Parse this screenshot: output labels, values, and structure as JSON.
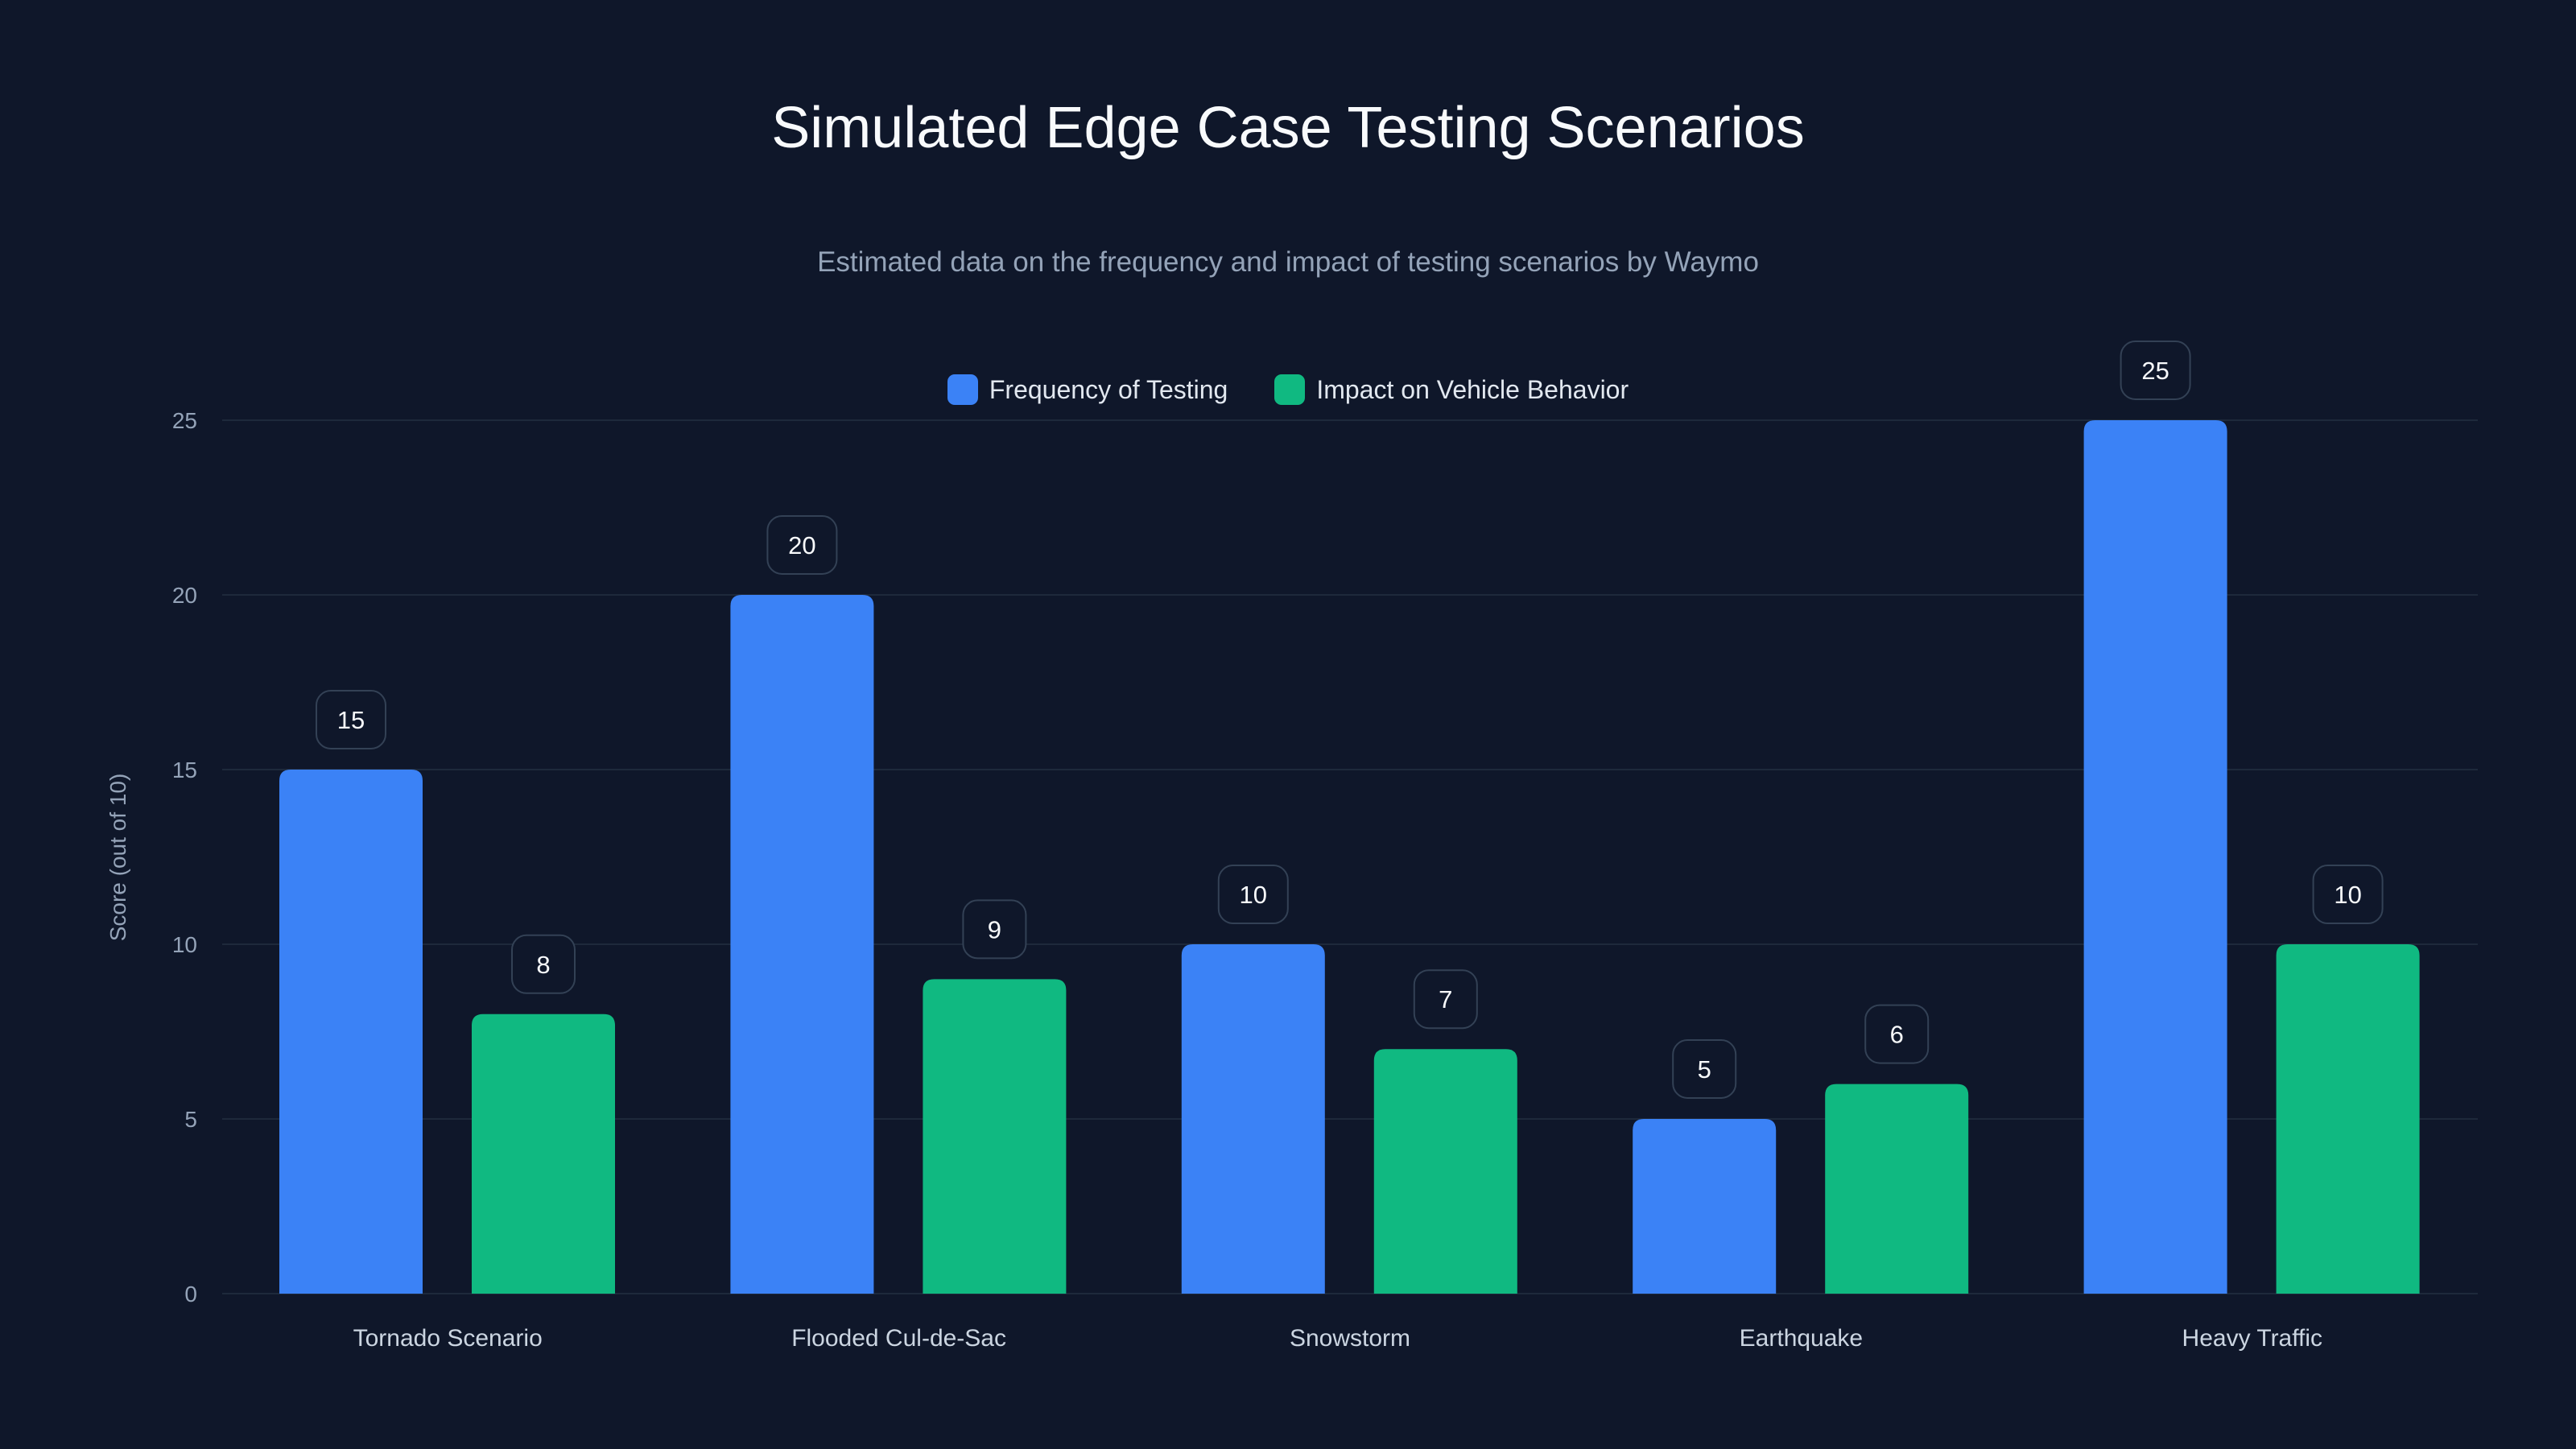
{
  "chart_data": {
    "type": "bar",
    "title": "Simulated Edge Case Testing Scenarios",
    "subtitle": "Estimated data on the frequency and impact of testing scenarios by Waymo",
    "xlabel": "",
    "ylabel": "Score (out of 10)",
    "ylim": [
      0,
      25
    ],
    "yticks": [
      0,
      5,
      10,
      15,
      20,
      25
    ],
    "grid": true,
    "legend_position": "top-center",
    "categories": [
      "Tornado Scenario",
      "Flooded Cul-de-Sac",
      "Snowstorm",
      "Earthquake",
      "Heavy Traffic"
    ],
    "series": [
      {
        "name": "Frequency of Testing",
        "color": "#3b82f6",
        "values": [
          15,
          20,
          10,
          5,
          25
        ]
      },
      {
        "name": "Impact on Vehicle Behavior",
        "color": "#10b981",
        "values": [
          8,
          9,
          7,
          6,
          10
        ]
      }
    ]
  }
}
